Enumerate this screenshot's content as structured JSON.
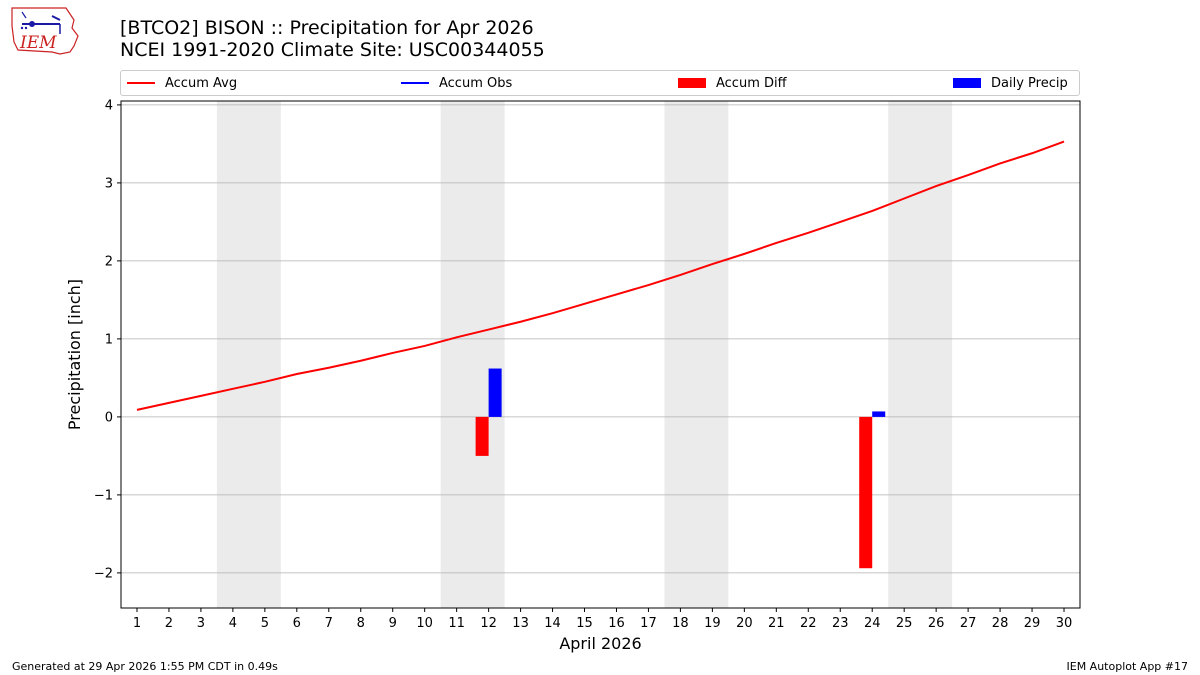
{
  "header": {
    "title_line1": "[BTCO2] BISON :: Precipitation for Apr 2026",
    "title_line2": "NCEI 1991-2020 Climate Site: USC00344055"
  },
  "logo": {
    "text": "IEM"
  },
  "footer": {
    "generated": "Generated at 29 Apr 2026 1:55 PM CDT in 0.49s",
    "app": "IEM Autoplot App #17"
  },
  "colors": {
    "accum_avg": "#ff0000",
    "accum_obs": "#0000ff",
    "accum_diff": "#ff0000",
    "daily_precip": "#0000ff",
    "weekend_band": "#ebebeb",
    "grid": "#b0b0b0"
  },
  "chart_data": {
    "type": "bar",
    "title": "[BTCO2] BISON :: Precipitation for Apr 2026",
    "subtitle": "NCEI 1991-2020 Climate Site: USC00344055",
    "xlabel": "April 2026",
    "ylabel": "Precipitation [inch]",
    "xlim": [
      0.5,
      30.5
    ],
    "ylim": [
      -2.45,
      4.05
    ],
    "yticks": [
      -2,
      -1,
      0,
      1,
      2,
      3,
      4
    ],
    "ytick_labels": [
      "−2",
      "−1",
      "0",
      "1",
      "2",
      "3",
      "4"
    ],
    "x": [
      1,
      2,
      3,
      4,
      5,
      6,
      7,
      8,
      9,
      10,
      11,
      12,
      13,
      14,
      15,
      16,
      17,
      18,
      19,
      20,
      21,
      22,
      23,
      24,
      25,
      26,
      27,
      28,
      29,
      30
    ],
    "xtick_labels": [
      "1",
      "2",
      "3",
      "4",
      "5",
      "6",
      "7",
      "8",
      "9",
      "10",
      "11",
      "12",
      "13",
      "14",
      "15",
      "16",
      "17",
      "18",
      "19",
      "20",
      "21",
      "22",
      "23",
      "24",
      "25",
      "26",
      "27",
      "28",
      "29",
      "30"
    ],
    "grid": "y",
    "weekend_spans": [
      [
        3.5,
        5.5
      ],
      [
        10.5,
        12.5
      ],
      [
        17.5,
        19.5
      ],
      [
        24.5,
        26.5
      ]
    ],
    "legend": [
      {
        "label": "Accum Avg",
        "kind": "line",
        "color_key": "accum_avg"
      },
      {
        "label": "Accum Obs",
        "kind": "line",
        "color_key": "accum_obs"
      },
      {
        "label": "Accum Diff",
        "kind": "bar",
        "color_key": "accum_diff"
      },
      {
        "label": "Daily Precip",
        "kind": "bar",
        "color_key": "daily_precip"
      }
    ],
    "legend_placement": "top",
    "series": [
      {
        "name": "Accum Avg",
        "type": "line",
        "values": [
          0.09,
          0.18,
          0.27,
          0.36,
          0.45,
          0.55,
          0.63,
          0.72,
          0.82,
          0.91,
          1.02,
          1.12,
          1.22,
          1.33,
          1.45,
          1.57,
          1.69,
          1.82,
          1.96,
          2.09,
          2.23,
          2.36,
          2.5,
          2.64,
          2.8,
          2.96,
          3.1,
          3.25,
          3.38,
          3.53
        ]
      },
      {
        "name": "Accum Diff",
        "type": "bar",
        "points": [
          {
            "x": 12,
            "value": -0.5
          },
          {
            "x": 24,
            "value": -1.94
          }
        ]
      },
      {
        "name": "Daily Precip",
        "type": "bar",
        "points": [
          {
            "x": 12,
            "value": 0.62
          },
          {
            "x": 24,
            "value": 0.07
          }
        ]
      }
    ]
  }
}
